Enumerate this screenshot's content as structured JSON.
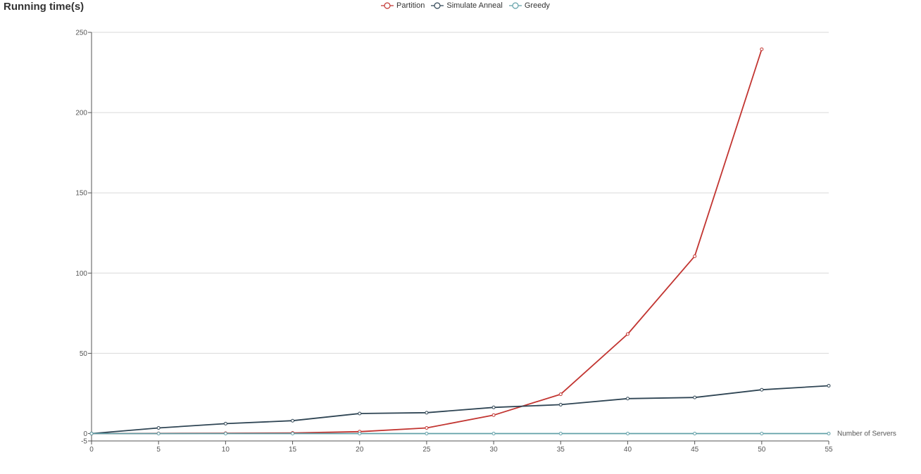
{
  "chart_data": {
    "type": "line",
    "title": "Running time(s)",
    "xlabel": "Number of Servers",
    "ylabel": "",
    "x_ticks": [
      0,
      5,
      10,
      15,
      20,
      25,
      30,
      35,
      40,
      45,
      50,
      55
    ],
    "y_ticks": [
      -5,
      0,
      50,
      100,
      150,
      200,
      250
    ],
    "xlim": [
      0,
      55
    ],
    "ylim": [
      -5,
      250
    ],
    "grid": "horizontal",
    "legend_position": "top-center",
    "series": [
      {
        "name": "Partition",
        "color": "#c23531",
        "x": [
          0,
          5,
          10,
          15,
          20,
          25,
          30,
          35,
          40,
          45,
          50
        ],
        "values": [
          0,
          0.1,
          0.2,
          0.4,
          1.2,
          3.5,
          11.5,
          24.5,
          62,
          110.5,
          239.5
        ]
      },
      {
        "name": "Simulate Anneal",
        "color": "#2f4554",
        "x": [
          0,
          5,
          10,
          15,
          20,
          25,
          30,
          35,
          40,
          45,
          50,
          55
        ],
        "values": [
          0,
          3.5,
          6.2,
          8,
          12.5,
          13,
          16.3,
          18,
          21.8,
          22.5,
          27.3,
          29.8
        ]
      },
      {
        "name": "Greedy",
        "color": "#61a0a8",
        "x": [
          0,
          5,
          10,
          15,
          20,
          25,
          30,
          35,
          40,
          45,
          50,
          55
        ],
        "values": [
          0,
          0,
          0,
          0,
          0,
          0,
          0,
          0,
          0,
          0,
          0,
          0
        ]
      }
    ]
  }
}
